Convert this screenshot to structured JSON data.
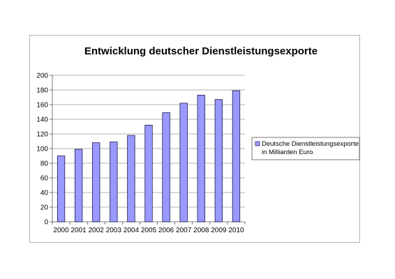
{
  "chart_data": {
    "type": "bar",
    "title": "Entwicklung deutscher Dienstleistungsexporte",
    "xlabel": "",
    "ylabel": "",
    "categories": [
      "2000",
      "2001",
      "2002",
      "2003",
      "2004",
      "2005",
      "2006",
      "2007",
      "2008",
      "2009",
      "2010"
    ],
    "series": [
      {
        "name": "Deutsche Dienstleistungsexporte in Milliarden Euro",
        "values": [
          90,
          99,
          108,
          109,
          118,
          132,
          149,
          162,
          173,
          167,
          179
        ],
        "color": "#9999ff"
      }
    ],
    "ylim": [
      0,
      200
    ],
    "yticks": [
      0,
      20,
      40,
      60,
      80,
      100,
      120,
      140,
      160,
      180,
      200
    ],
    "grid": true,
    "legend": "right"
  }
}
